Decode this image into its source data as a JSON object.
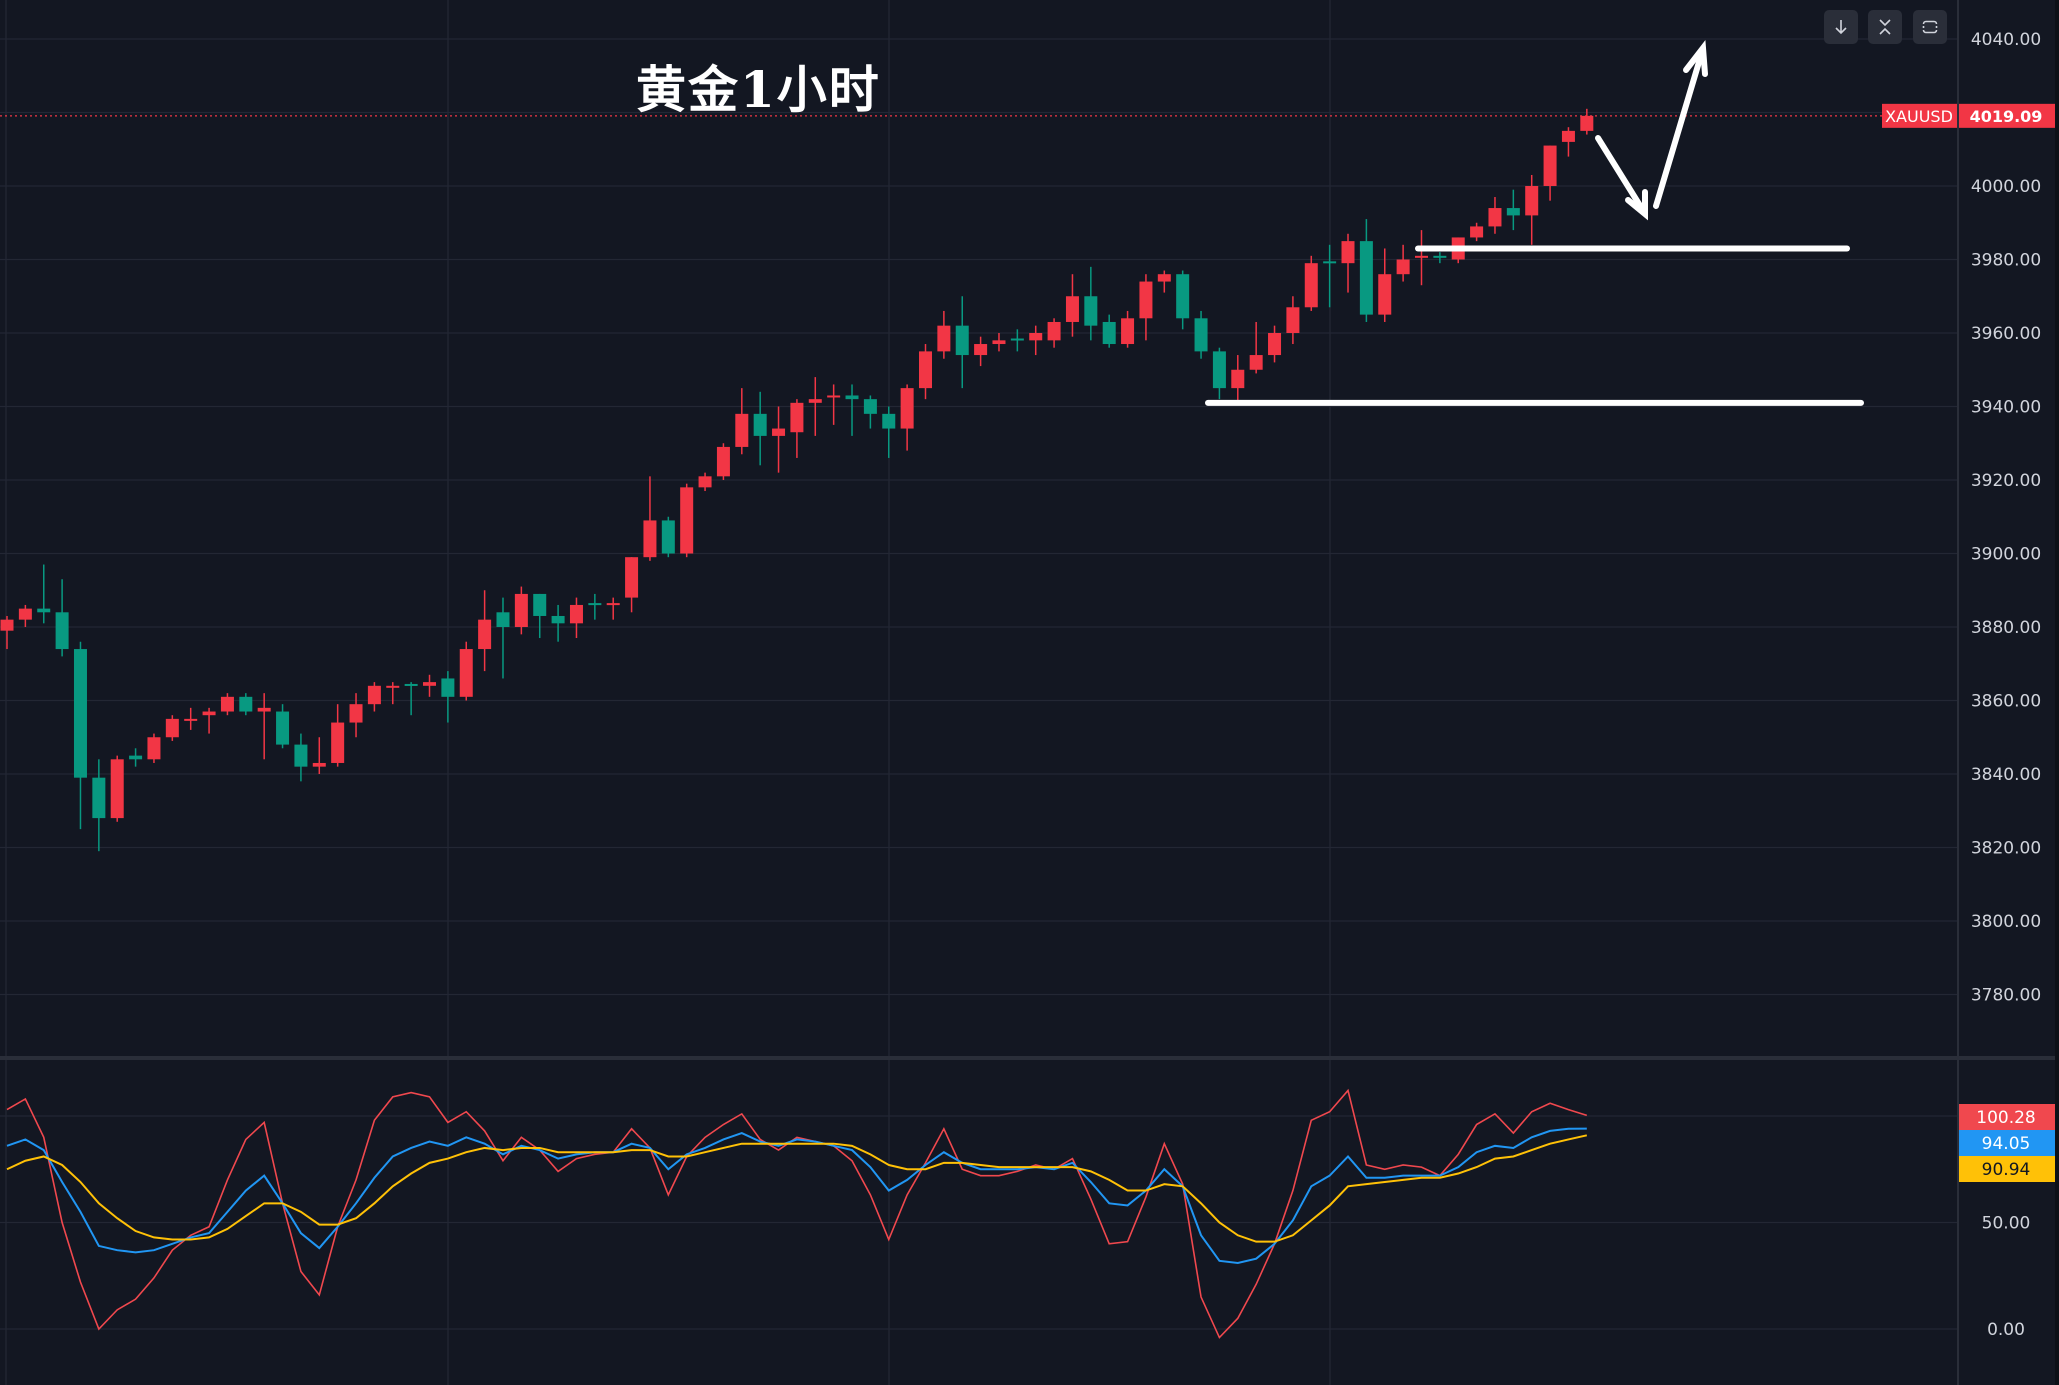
{
  "title": "黄金1小时",
  "symbol_label": "XAUUSD",
  "last_price_label": "4019.09",
  "toolbar": {
    "buttons": [
      {
        "name": "scroll-to-latest",
        "icon": "arrow-down-icon"
      },
      {
        "name": "collapse-pane",
        "icon": "collapse-icon"
      },
      {
        "name": "maximize-pane",
        "icon": "fullscreen-icon"
      }
    ]
  },
  "colors": {
    "background": "#131722",
    "grid": "#232734",
    "up": "#f23645",
    "down": "#089981",
    "fast_line": "#f0484e",
    "mid_line": "#2196f3",
    "slow_line": "#ffc107",
    "axis_text": "#d1d4dc"
  },
  "chart_data": [
    {
      "type": "candlestick",
      "symbol": "XAUUSD",
      "last_price": 4019.09,
      "ylim": [
        3765,
        4045
      ],
      "yticks": [
        4040,
        4020,
        4000,
        3980,
        3960,
        3940,
        3920,
        3900,
        3880,
        3860,
        3840,
        3820,
        3800,
        3780
      ],
      "ytick_labels": [
        "4040.00",
        "",
        "4000.00",
        "3980.00",
        "3960.00",
        "3940.00",
        "3920.00",
        "3900.00",
        "3880.00",
        "3860.00",
        "3840.00",
        "3820.00",
        "3800.00",
        "3780.00"
      ],
      "grid": true,
      "ohlc": [
        [
          3879,
          3883,
          3874,
          3882
        ],
        [
          3882,
          3886,
          3880,
          3885
        ],
        [
          3885,
          3897,
          3881,
          3884
        ],
        [
          3884,
          3893,
          3872,
          3874
        ],
        [
          3874,
          3876,
          3825,
          3839
        ],
        [
          3839,
          3844,
          3819,
          3828
        ],
        [
          3828,
          3845,
          3827,
          3844
        ],
        [
          3845,
          3847,
          3842,
          3844
        ],
        [
          3844,
          3851,
          3843,
          3850
        ],
        [
          3850,
          3856,
          3849,
          3855
        ],
        [
          3855,
          3858,
          3852,
          3855
        ],
        [
          3856,
          3858,
          3851,
          3857
        ],
        [
          3857,
          3862,
          3856,
          3861
        ],
        [
          3861,
          3862,
          3856,
          3857
        ],
        [
          3857,
          3862,
          3844,
          3858
        ],
        [
          3857,
          3859,
          3847,
          3848
        ],
        [
          3848,
          3851,
          3838,
          3842
        ],
        [
          3842,
          3850,
          3840,
          3843
        ],
        [
          3843,
          3859,
          3842,
          3854
        ],
        [
          3854,
          3862,
          3850,
          3859
        ],
        [
          3859,
          3865,
          3857,
          3864
        ],
        [
          3864,
          3865,
          3859,
          3864
        ],
        [
          3864.5,
          3865,
          3856,
          3864
        ],
        [
          3864,
          3867,
          3861,
          3865
        ],
        [
          3866,
          3868,
          3854,
          3861
        ],
        [
          3861,
          3876,
          3860,
          3874
        ],
        [
          3874,
          3890,
          3868,
          3882
        ],
        [
          3884,
          3888,
          3866,
          3880
        ],
        [
          3880,
          3891,
          3878,
          3889
        ],
        [
          3889,
          3889,
          3877,
          3883
        ],
        [
          3883,
          3886,
          3876,
          3881
        ],
        [
          3881,
          3888,
          3877,
          3886
        ],
        [
          3886.5,
          3889,
          3882,
          3886
        ],
        [
          3886,
          3888,
          3882,
          3886.5
        ],
        [
          3888,
          3899,
          3884,
          3899
        ],
        [
          3899,
          3921,
          3898,
          3909
        ],
        [
          3909,
          3910,
          3899,
          3900
        ],
        [
          3900,
          3919,
          3899,
          3918
        ],
        [
          3918,
          3922,
          3917,
          3921
        ],
        [
          3921,
          3930,
          3920,
          3929
        ],
        [
          3929,
          3945,
          3927,
          3938
        ],
        [
          3938,
          3944,
          3924,
          3932
        ],
        [
          3932,
          3940,
          3922,
          3934
        ],
        [
          3933,
          3942,
          3926,
          3941
        ],
        [
          3941,
          3948,
          3932,
          3942
        ],
        [
          3943,
          3946,
          3935,
          3943
        ],
        [
          3943,
          3946,
          3932,
          3942
        ],
        [
          3942,
          3943,
          3934,
          3938
        ],
        [
          3938,
          3940,
          3926,
          3934
        ],
        [
          3934,
          3946,
          3928,
          3945
        ],
        [
          3945,
          3957,
          3942,
          3955
        ],
        [
          3955,
          3966,
          3953,
          3962
        ],
        [
          3962,
          3970,
          3945,
          3954
        ],
        [
          3954,
          3959,
          3951,
          3957
        ],
        [
          3957,
          3960,
          3955,
          3958
        ],
        [
          3958.5,
          3961,
          3955,
          3958
        ],
        [
          3958,
          3962,
          3954,
          3960
        ],
        [
          3958,
          3964,
          3956,
          3963
        ],
        [
          3963,
          3976,
          3959,
          3970
        ],
        [
          3970,
          3978,
          3958,
          3962
        ],
        [
          3963,
          3965,
          3956,
          3957
        ],
        [
          3957,
          3966,
          3956,
          3964
        ],
        [
          3964,
          3976,
          3958,
          3974
        ],
        [
          3974,
          3977,
          3971,
          3976
        ],
        [
          3976,
          3977,
          3961,
          3964
        ],
        [
          3964,
          3966,
          3953,
          3955
        ],
        [
          3955,
          3956,
          3942,
          3945
        ],
        [
          3945,
          3954,
          3941,
          3950
        ],
        [
          3950,
          3963,
          3949,
          3954
        ],
        [
          3954,
          3962,
          3952,
          3960
        ],
        [
          3960,
          3970,
          3957,
          3967
        ],
        [
          3967,
          3981,
          3966,
          3979
        ],
        [
          3979.5,
          3984,
          3967,
          3979
        ],
        [
          3979,
          3987,
          3971,
          3985
        ],
        [
          3985,
          3991,
          3963,
          3965
        ],
        [
          3965,
          3983,
          3963,
          3976
        ],
        [
          3976,
          3984,
          3974,
          3980
        ],
        [
          3980.5,
          3988,
          3973,
          3981
        ],
        [
          3981,
          3982,
          3979,
          3980.5
        ],
        [
          3980,
          3986,
          3979,
          3986
        ],
        [
          3986,
          3990,
          3985,
          3989
        ],
        [
          3989,
          3997,
          3987,
          3994
        ],
        [
          3994,
          3999,
          3988,
          3992
        ],
        [
          3992,
          4003,
          3984,
          4000
        ],
        [
          4000,
          4011,
          3996,
          4011
        ],
        [
          4012,
          4016,
          4008,
          4015
        ],
        [
          4015,
          4021,
          4014,
          4019.09
        ]
      ],
      "annotations": {
        "horizontal_levels": [
          3983,
          3941
        ],
        "arrows": [
          "down",
          "up"
        ]
      }
    },
    {
      "type": "line",
      "ylim": [
        -10,
        125
      ],
      "yticks": [
        50,
        0
      ],
      "ytick_labels": [
        "50.00",
        "0.00"
      ],
      "grid": true,
      "series": [
        {
          "color": "#f0484e",
          "last_label": "100.28",
          "values": [
            103,
            108,
            90,
            50,
            22,
            0,
            9,
            14,
            24,
            37,
            44,
            48,
            70,
            89,
            97,
            59,
            27,
            16,
            48,
            70,
            98,
            109,
            111,
            109,
            97,
            102,
            93,
            79,
            90,
            84,
            74,
            80,
            82,
            83,
            94,
            85,
            63,
            81,
            90,
            96,
            101,
            89,
            84,
            90,
            88,
            86,
            79,
            63,
            42,
            63,
            78,
            94,
            75,
            72,
            72,
            74,
            77,
            75,
            80,
            61,
            40,
            41,
            62,
            87,
            68,
            15,
            -4,
            5,
            21,
            40,
            65,
            98,
            102,
            112,
            77,
            75,
            77,
            76,
            72,
            82,
            96,
            101,
            92,
            102,
            106,
            103,
            100.28
          ]
        },
        {
          "color": "#2196f3",
          "last_label": "94.05",
          "values": [
            86,
            89,
            84,
            69,
            55,
            39,
            37,
            36,
            37,
            40,
            43,
            45,
            55,
            65,
            72,
            59,
            45,
            38,
            48,
            59,
            71,
            81,
            85,
            88,
            86,
            90,
            87,
            82,
            86,
            84,
            80,
            82,
            83,
            83,
            87,
            85,
            75,
            82,
            85,
            89,
            92,
            88,
            86,
            89,
            88,
            86,
            84,
            76,
            65,
            70,
            77,
            83,
            78,
            75,
            75,
            75,
            76,
            75,
            78,
            69,
            59,
            58,
            65,
            75,
            67,
            44,
            32,
            31,
            33,
            40,
            51,
            67,
            72,
            81,
            71,
            71,
            72,
            72,
            72,
            76,
            83,
            86,
            85,
            90,
            93,
            94,
            94.05
          ]
        },
        {
          "color": "#ffc107",
          "last_label": "90.94",
          "values": [
            75,
            79,
            81,
            77,
            69,
            59,
            52,
            46,
            43,
            42,
            42,
            43,
            47,
            53,
            59,
            59,
            55,
            49,
            49,
            52,
            59,
            67,
            73,
            78,
            80,
            83,
            85,
            84,
            85,
            85,
            83,
            83,
            83,
            83,
            84,
            84,
            81,
            81,
            83,
            85,
            87,
            87,
            87,
            87,
            87,
            87,
            86,
            82,
            77,
            75,
            75,
            78,
            78,
            77,
            76,
            76,
            76,
            76,
            76,
            74,
            70,
            65,
            65,
            68,
            67,
            59,
            50,
            44,
            41,
            41,
            44,
            51,
            58,
            67,
            68,
            69,
            70,
            71,
            71,
            73,
            76,
            80,
            81,
            84,
            87,
            89,
            90.94
          ]
        }
      ]
    }
  ]
}
